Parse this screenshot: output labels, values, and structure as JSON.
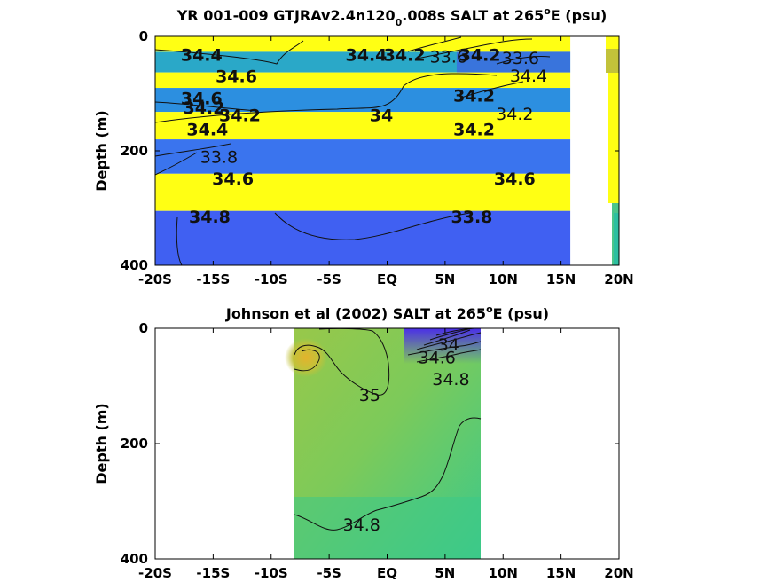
{
  "chart_data": [
    {
      "type": "contour",
      "title_main": "YR 001-009 GTJRAv2.4n120",
      "title_sub": "0",
      "title_rest": ".008s SALT at 265",
      "title_sup": "o",
      "title_end": "E (psu)",
      "xlabel": "",
      "ylabel": "Depth (m)",
      "xlim": [
        -20,
        20
      ],
      "ylim": [
        400,
        0
      ],
      "xticks": [
        "-20S",
        "-15S",
        "-10S",
        "-5S",
        "EQ",
        "5N",
        "10N",
        "15N",
        "20N"
      ],
      "yticks": [
        "0",
        "200",
        "400"
      ],
      "data_extent": {
        "lat": [
          -20,
          15.8
        ],
        "depth": [
          0,
          400
        ]
      },
      "bands": [
        {
          "z0": 0,
          "z1": 27,
          "color": "#ffff14"
        },
        {
          "z0": 27,
          "z1": 63,
          "color": "#2aa8c8"
        },
        {
          "z0": 63,
          "z1": 90,
          "color": "#ffff14"
        },
        {
          "z0": 90,
          "z1": 132,
          "color": "#2c8fe0"
        },
        {
          "z0": 132,
          "z1": 180,
          "color": "#ffff14"
        },
        {
          "z0": 180,
          "z1": 240,
          "color": "#3a74ee"
        },
        {
          "z0": 240,
          "z1": 305,
          "color": "#ffff14"
        },
        {
          "z0": 305,
          "z1": 400,
          "color": "#4060f2"
        }
      ],
      "contour_labels": [
        {
          "lat": -16,
          "depth": 32,
          "text": "34.4"
        },
        {
          "lat": -1.8,
          "depth": 32,
          "text": "34.4"
        },
        {
          "lat": 1.5,
          "depth": 32,
          "text": "34.2"
        },
        {
          "lat": 5.3,
          "depth": 35,
          "text": "33.6"
        },
        {
          "lat": 8,
          "depth": 32,
          "text": "34.2"
        },
        {
          "lat": 11.5,
          "depth": 37,
          "text": "33.6"
        },
        {
          "lat": 12.2,
          "depth": 68,
          "text": "34.4"
        },
        {
          "lat": -13,
          "depth": 69,
          "text": "34.6"
        },
        {
          "lat": 7.5,
          "depth": 103,
          "text": "34.2"
        },
        {
          "lat": -16,
          "depth": 108,
          "text": "34.6"
        },
        {
          "lat": -15.8,
          "depth": 124,
          "text": "34.2"
        },
        {
          "lat": -12.7,
          "depth": 137,
          "text": "34.2"
        },
        {
          "lat": -0.5,
          "depth": 137,
          "text": "34"
        },
        {
          "lat": 11,
          "depth": 135,
          "text": "34.2"
        },
        {
          "lat": -15.5,
          "depth": 162,
          "text": "34.4"
        },
        {
          "lat": 7.5,
          "depth": 162,
          "text": "34.2"
        },
        {
          "lat": -14.5,
          "depth": 210,
          "text": "33.8"
        },
        {
          "lat": -13.3,
          "depth": 248,
          "text": "34.6"
        },
        {
          "lat": 11,
          "depth": 248,
          "text": "34.6"
        },
        {
          "lat": -15.3,
          "depth": 315,
          "text": "34.8"
        },
        {
          "lat": 7.3,
          "depth": 315,
          "text": "33.8"
        }
      ]
    },
    {
      "type": "contour",
      "title_main": "Johnson et al (2002) SALT at 265",
      "title_sup": "o",
      "title_end": "E (psu)",
      "xlabel": "",
      "ylabel": "Depth (m)",
      "xlim": [
        -20,
        20
      ],
      "ylim": [
        400,
        0
      ],
      "xticks": [
        "-20S",
        "-15S",
        "-10S",
        "-5S",
        "EQ",
        "5N",
        "10N",
        "15N",
        "20N"
      ],
      "yticks": [
        "0",
        "200",
        "400"
      ],
      "data_extent": {
        "lat": [
          -8,
          8
        ],
        "depth": [
          0,
          400
        ]
      },
      "contour_labels": [
        {
          "lat": -1.5,
          "depth": 115,
          "text": "35"
        },
        {
          "lat": 4.3,
          "depth": 50,
          "text": "34.6"
        },
        {
          "lat": 5.3,
          "depth": 28,
          "text": "34"
        },
        {
          "lat": 5.5,
          "depth": 88,
          "text": "34.8"
        },
        {
          "lat": -2.2,
          "depth": 340,
          "text": "34.8"
        }
      ]
    }
  ],
  "colors": {
    "salty": "#c6c030",
    "fresh": "#3b4cf0",
    "mid": "#7acb5c"
  }
}
